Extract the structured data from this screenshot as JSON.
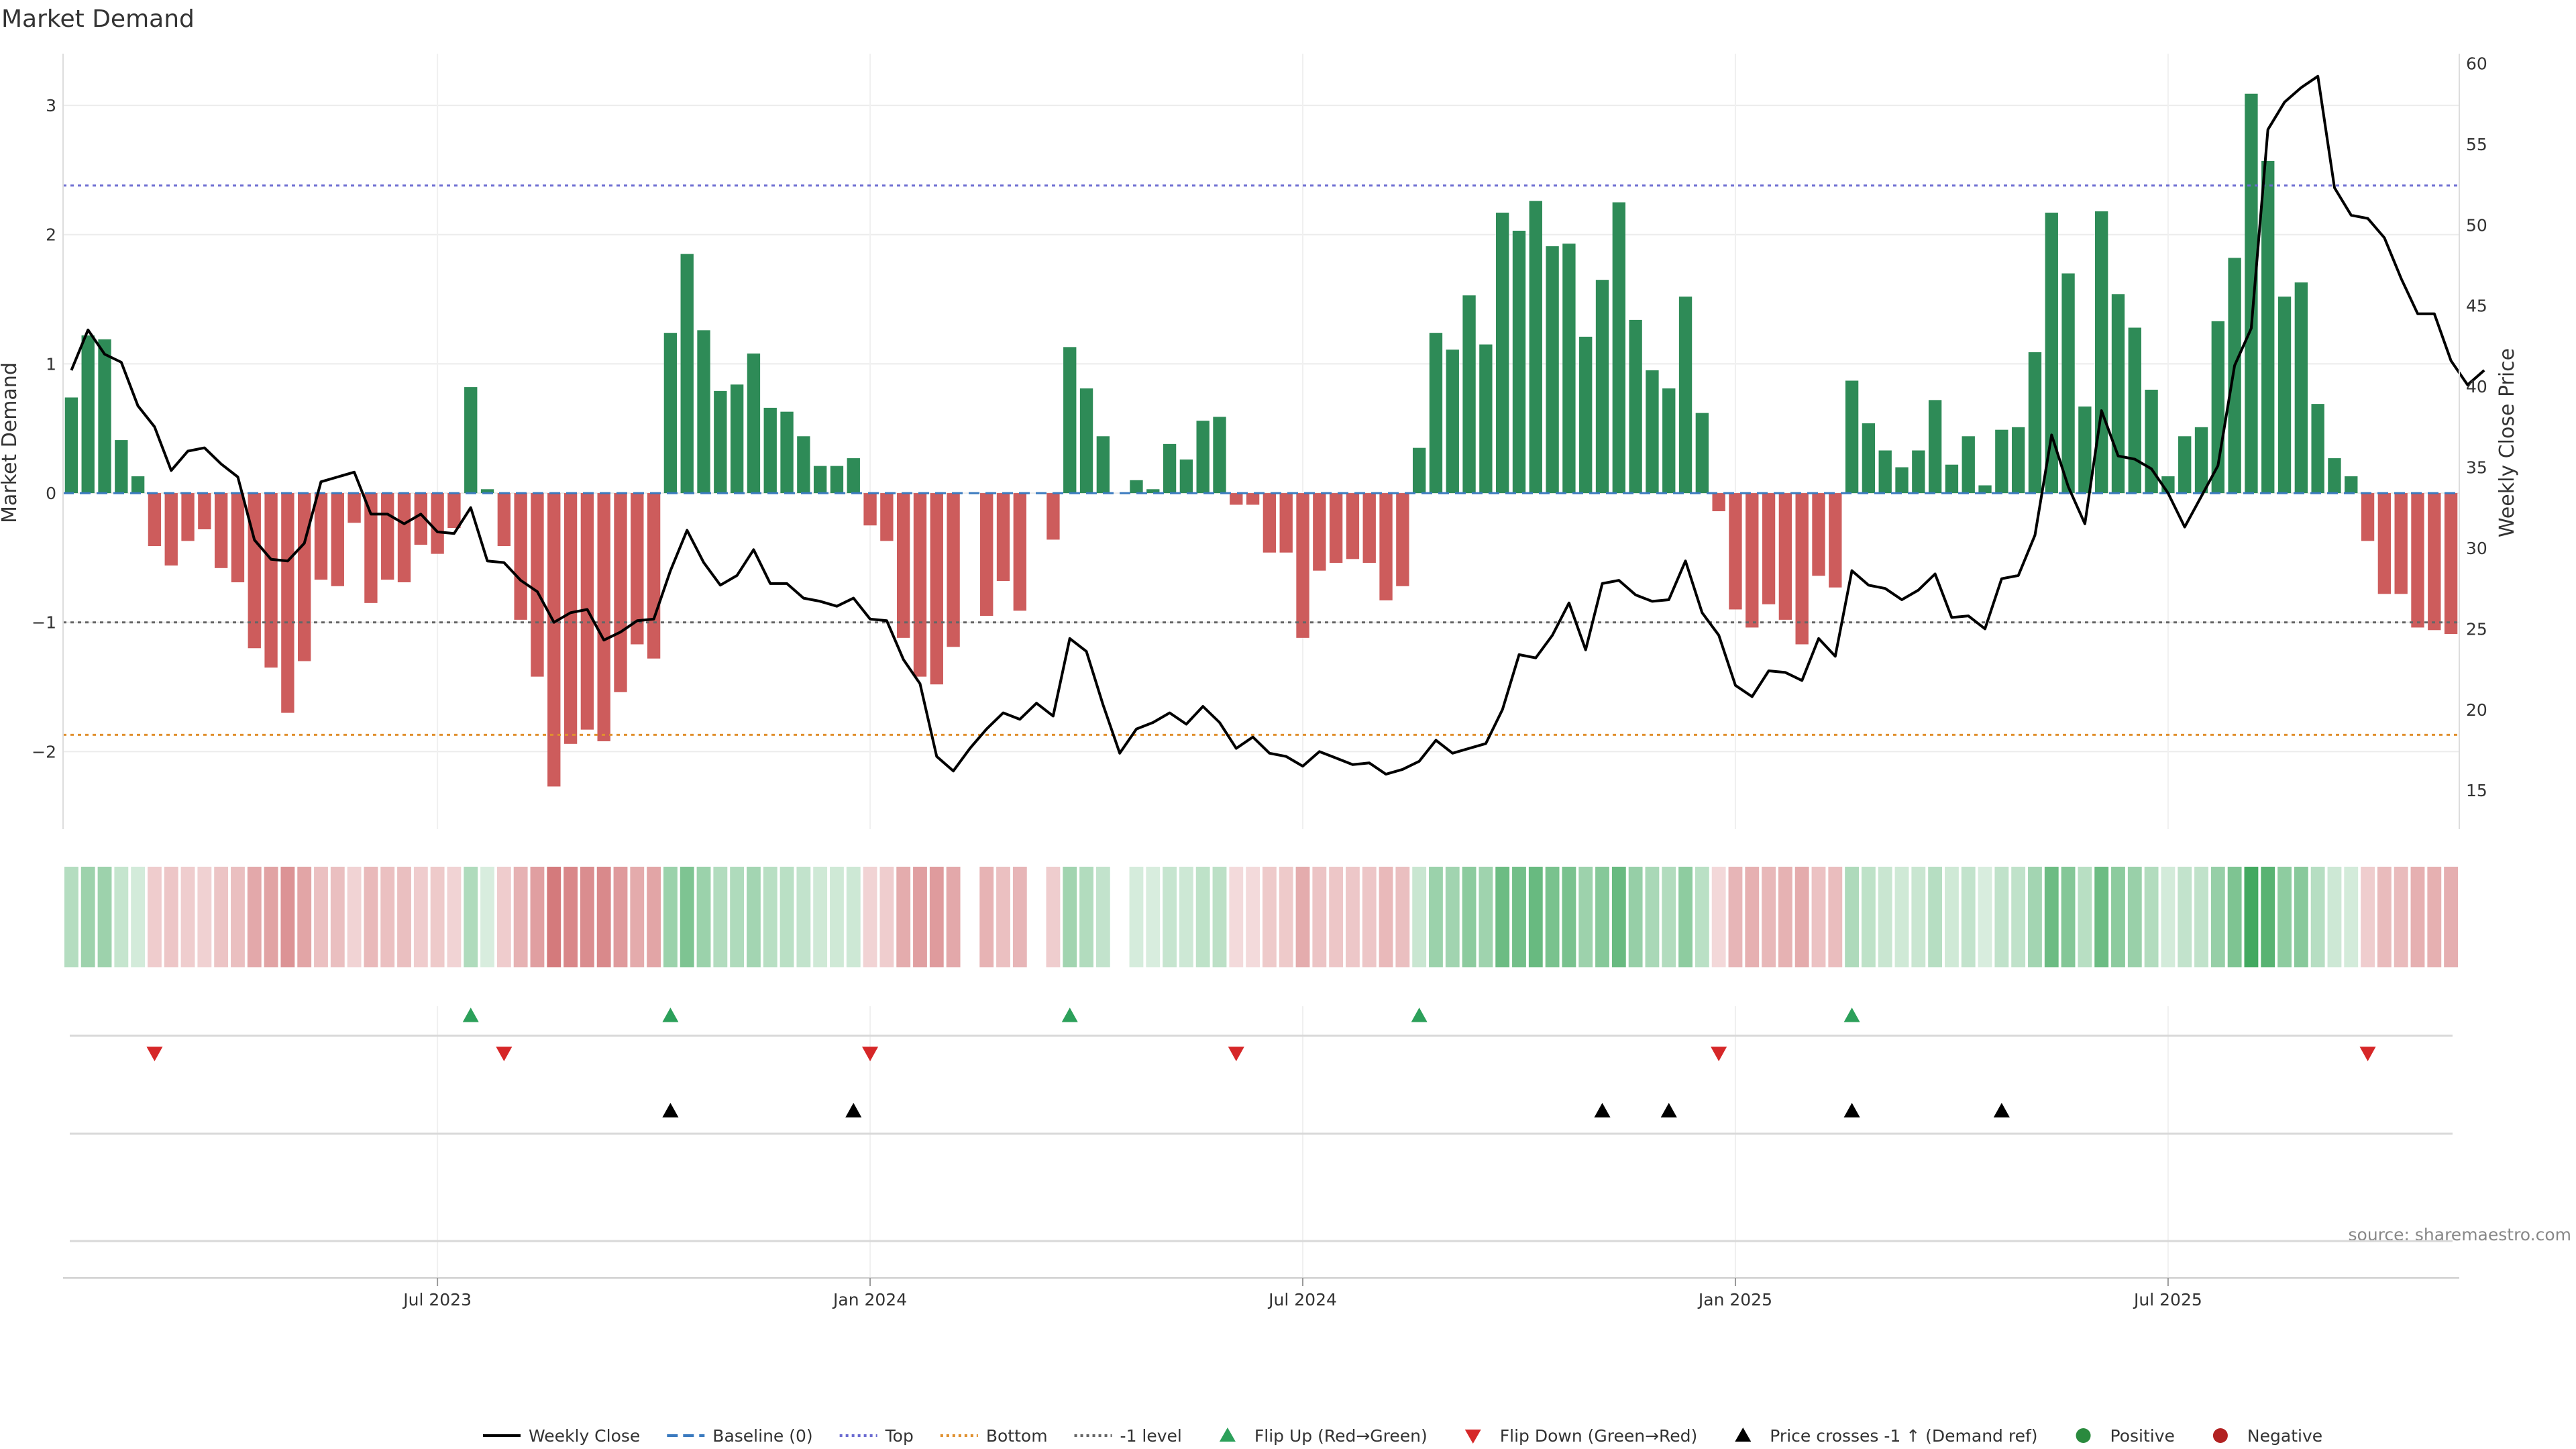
{
  "chart_data": {
    "type": "bar",
    "title": "Market Demand",
    "ylabel": "Market Demand",
    "y2label": "Weekly Close Price",
    "ylim": [
      -2.6,
      3.4
    ],
    "y2lim": [
      12.6,
      60.6
    ],
    "yticks": [
      -2,
      -1,
      0,
      1,
      2,
      3
    ],
    "y2ticks": [
      15,
      20,
      25,
      30,
      35,
      40,
      45,
      50,
      55,
      60
    ],
    "reference_lines": {
      "top": 2.38,
      "bottom": -1.87,
      "minus_one": -1,
      "baseline": 0
    },
    "x_tick_labels": [
      "Jul 2023",
      "Jan 2024",
      "Jul 2024",
      "Jan 2025",
      "Jul 2025"
    ],
    "x_tick_index": [
      22,
      48,
      74,
      100,
      126
    ],
    "demand": [
      0.74,
      1.22,
      1.19,
      0.41,
      0.13,
      -0.41,
      -0.56,
      -0.37,
      -0.28,
      -0.58,
      -0.69,
      -1.2,
      -1.35,
      -1.7,
      -1.3,
      -0.67,
      -0.72,
      -0.23,
      -0.85,
      -0.67,
      -0.69,
      -0.4,
      -0.47,
      -0.27,
      0.82,
      0.03,
      -0.41,
      -0.98,
      -1.42,
      -2.27,
      -1.94,
      -1.83,
      -1.92,
      -1.54,
      -1.17,
      -1.28,
      1.24,
      1.85,
      1.26,
      0.79,
      0.84,
      1.08,
      0.66,
      0.63,
      0.44,
      0.21,
      0.21,
      0.27,
      -0.25,
      -0.37,
      -1.12,
      -1.42,
      -1.48,
      -1.19,
      0,
      -0.95,
      -0.68,
      -0.91,
      0,
      -0.36,
      1.13,
      0.81,
      0.44,
      0,
      0.1,
      0.03,
      0.38,
      0.26,
      0.56,
      0.59,
      -0.09,
      -0.09,
      -0.46,
      -0.46,
      -1.12,
      -0.6,
      -0.54,
      -0.51,
      -0.54,
      -0.83,
      -0.72,
      0.35,
      1.24,
      1.11,
      1.53,
      1.15,
      2.17,
      2.03,
      2.26,
      1.91,
      1.93,
      1.21,
      1.65,
      2.25,
      1.34,
      0.95,
      0.81,
      1.52,
      0.62,
      -0.14,
      -0.9,
      -1.04,
      -0.86,
      -0.98,
      -1.17,
      -0.64,
      -0.73,
      0.87,
      0.54,
      0.33,
      0.2,
      0.33,
      0.72,
      0.22,
      0.44,
      0.06,
      0.49,
      0.51,
      1.09,
      2.17,
      1.7,
      0.67,
      2.18,
      1.54,
      1.28,
      0.8,
      0.13,
      0.44,
      0.51,
      1.33,
      1.82,
      3.09,
      2.57,
      1.52,
      1.63,
      0.69,
      0.27,
      0.13,
      -0.37,
      -0.78,
      -0.78,
      -1.04,
      -1.06,
      -1.09
    ],
    "weekly_close": [
      41,
      43.5,
      42,
      41.5,
      38.8,
      37.5,
      34.8,
      36,
      36.2,
      35.2,
      34.4,
      30.5,
      29.3,
      29.2,
      30.3,
      34.1,
      34.4,
      34.7,
      32.1,
      32.1,
      31.5,
      32.1,
      31,
      30.9,
      32.5,
      29.2,
      29.1,
      28,
      27.3,
      25.4,
      26,
      26.2,
      24.3,
      24.8,
      25.5,
      25.6,
      28.6,
      31.1,
      29.1,
      27.7,
      28.3,
      29.9,
      27.8,
      27.8,
      26.9,
      26.7,
      26.4,
      26.9,
      25.6,
      25.5,
      23.1,
      21.6,
      17.1,
      16.2,
      17.6,
      18.8,
      19.8,
      19.4,
      20.4,
      19.6,
      24.4,
      23.6,
      20.3,
      17.3,
      18.8,
      19.2,
      19.8,
      19.1,
      20.2,
      19.2,
      17.6,
      18.3,
      17.3,
      17.1,
      16.5,
      17.4,
      17,
      16.6,
      16.7,
      16,
      16.3,
      16.8,
      18.1,
      17.3,
      17.6,
      17.9,
      20,
      23.4,
      23.2,
      24.6,
      26.6,
      23.7,
      27.8,
      28,
      27.1,
      26.7,
      26.8,
      29.2,
      26,
      24.6,
      21.5,
      20.8,
      22.4,
      22.3,
      21.8,
      24.4,
      23.3,
      28.6,
      27.7,
      27.5,
      26.8,
      27.4,
      28.4,
      25.7,
      25.8,
      25,
      28.1,
      28.3,
      30.8,
      37,
      33.8,
      31.5,
      38.5,
      35.7,
      35.5,
      34.9,
      33.4,
      31.3,
      33.2,
      35.1,
      41.3,
      43.6,
      55.9,
      57.6,
      58.5,
      59.2,
      52.3,
      50.6,
      50.4,
      49.2,
      46.7,
      44.5,
      44.5,
      41.6,
      40.1,
      41
    ],
    "flip_up_index": [
      24,
      36,
      60,
      81,
      107
    ],
    "flip_down_index": [
      5,
      26,
      48,
      70,
      99,
      138
    ],
    "price_cross_index": [
      36,
      47,
      92,
      96,
      107,
      116
    ],
    "legend": [
      {
        "label": "Weekly Close",
        "kind": "line",
        "color": "#000000"
      },
      {
        "label": "Baseline (0)",
        "kind": "dash",
        "color": "#3a7abf"
      },
      {
        "label": "Top",
        "kind": "dot",
        "color": "#6b6bd1"
      },
      {
        "label": "Bottom",
        "kind": "dot",
        "color": "#e0902e"
      },
      {
        "label": "-1 level",
        "kind": "dot",
        "color": "#666666"
      },
      {
        "label": "Flip Up (Red→Green)",
        "kind": "tri-up",
        "color": "#2ca05a"
      },
      {
        "label": "Flip Down (Green→Red)",
        "kind": "tri-down",
        "color": "#d62728"
      },
      {
        "label": "Price crosses -1 ↑ (Demand ref)",
        "kind": "tri-up",
        "color": "#000000"
      },
      {
        "label": "Positive",
        "kind": "dot-marker",
        "color": "#2a8a3e"
      },
      {
        "label": "Negative",
        "kind": "dot-marker",
        "color": "#b22222"
      }
    ]
  },
  "source": "source: sharemaestro.com",
  "colors": {
    "positive": "#2e8b57",
    "negative": "#cd5c5c",
    "price": "#000000"
  }
}
